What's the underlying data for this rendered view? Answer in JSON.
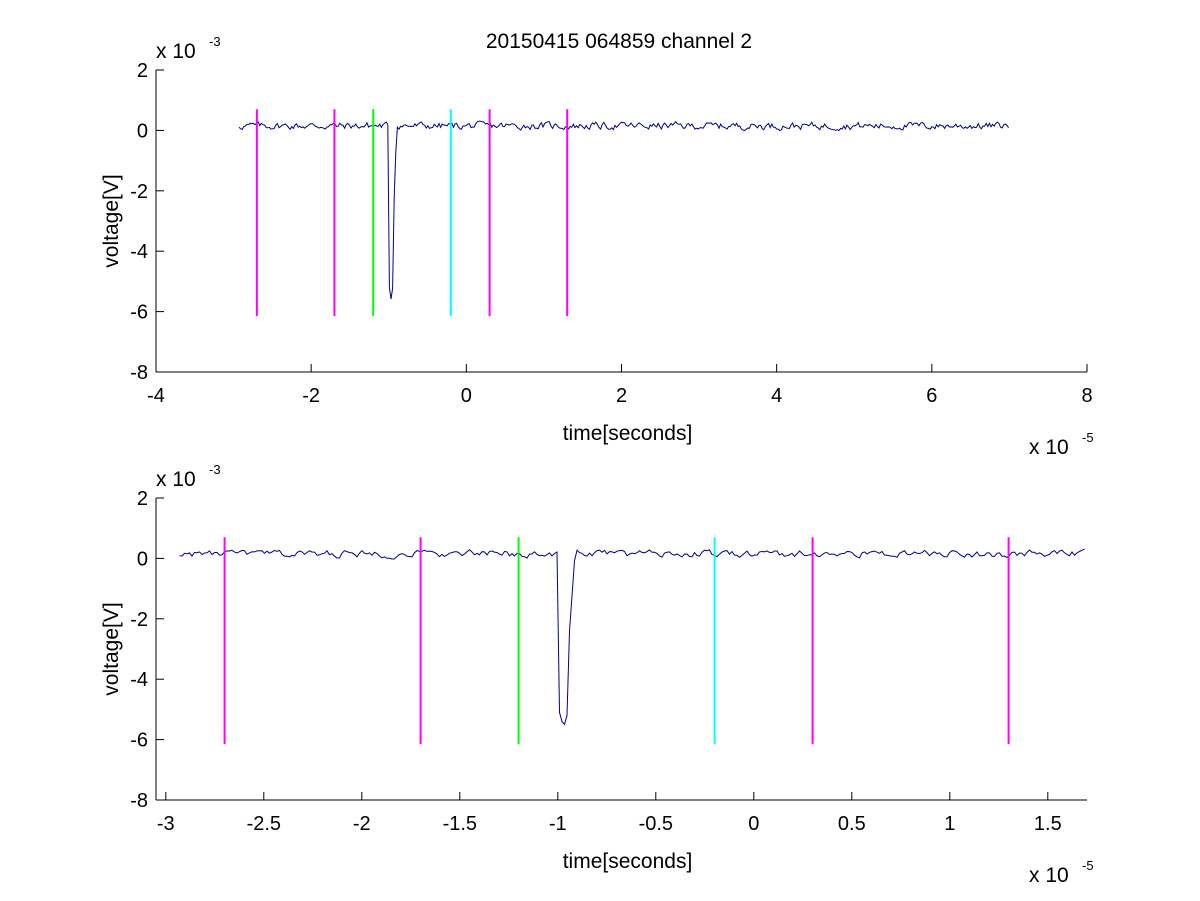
{
  "title": "20150415 064859 channel 2",
  "colors": {
    "signal": "#00008b",
    "magenta": "#ff00ff",
    "green": "#00ff00",
    "cyan": "#00ffff",
    "axis": "#000000"
  },
  "chart_data": [
    {
      "type": "line",
      "xlabel": "time[seconds]",
      "ylabel": "voltage[V]",
      "x_exponent_label": "x 10",
      "x_exponent_power": "-5",
      "y_exponent_label": "x 10",
      "y_exponent_power": "-3",
      "xlim": [
        -4,
        8
      ],
      "ylim": [
        -8,
        2
      ],
      "xticks": [
        -4,
        -2,
        0,
        2,
        4,
        6,
        8
      ],
      "xtick_labels": [
        "-4",
        "-2",
        "0",
        "2",
        "4",
        "6",
        "8"
      ],
      "yticks": [
        -8,
        -6,
        -4,
        -2,
        0,
        2
      ],
      "ytick_labels": [
        "-8",
        "-6",
        "-4",
        "-2",
        "0",
        "2"
      ],
      "grid": false,
      "signal": {
        "x_range": [
          -2.93,
          7.0
        ],
        "baseline": 0.15,
        "noise_amplitude": 0.2,
        "pulse": {
          "x": -0.97,
          "min": -5.6
        }
      },
      "markers": [
        {
          "x": -2.7,
          "y_bottom": -6.15,
          "y_top": 0.7,
          "color": "magenta"
        },
        {
          "x": -1.7,
          "y_bottom": -6.15,
          "y_top": 0.7,
          "color": "magenta"
        },
        {
          "x": -1.2,
          "y_bottom": -6.15,
          "y_top": 0.7,
          "color": "green"
        },
        {
          "x": -0.2,
          "y_bottom": -6.15,
          "y_top": 0.7,
          "color": "cyan"
        },
        {
          "x": 0.3,
          "y_bottom": -6.15,
          "y_top": 0.7,
          "color": "magenta"
        },
        {
          "x": 1.3,
          "y_bottom": -6.15,
          "y_top": 0.7,
          "color": "magenta"
        }
      ]
    },
    {
      "type": "line",
      "xlabel": "time[seconds]",
      "ylabel": "voltage[V]",
      "x_exponent_label": "x 10",
      "x_exponent_power": "-5",
      "y_exponent_label": "x 10",
      "y_exponent_power": "-3",
      "xlim": [
        -3.05,
        1.7
      ],
      "ylim": [
        -8,
        2
      ],
      "xticks": [
        -3,
        -2.5,
        -2,
        -1.5,
        -1,
        -0.5,
        0,
        0.5,
        1,
        1.5
      ],
      "xtick_labels": [
        "-3",
        "-2.5",
        "-2",
        "-1.5",
        "-1",
        "-0.5",
        "0",
        "0.5",
        "1",
        "1.5"
      ],
      "yticks": [
        -8,
        -6,
        -4,
        -2,
        0,
        2
      ],
      "ytick_labels": [
        "-8",
        "-6",
        "-4",
        "-2",
        "0",
        "2"
      ],
      "grid": false,
      "signal": {
        "x_range": [
          -2.93,
          1.7
        ],
        "baseline": 0.15,
        "noise_amplitude": 0.2,
        "pulse": {
          "x": -0.97,
          "min": -5.6
        }
      },
      "markers": [
        {
          "x": -2.7,
          "y_bottom": -6.15,
          "y_top": 0.7,
          "color": "magenta"
        },
        {
          "x": -1.7,
          "y_bottom": -6.15,
          "y_top": 0.7,
          "color": "magenta"
        },
        {
          "x": -1.2,
          "y_bottom": -6.15,
          "y_top": 0.7,
          "color": "green"
        },
        {
          "x": -0.2,
          "y_bottom": -6.15,
          "y_top": 0.7,
          "color": "cyan"
        },
        {
          "x": 0.3,
          "y_bottom": -6.15,
          "y_top": 0.7,
          "color": "magenta"
        },
        {
          "x": 1.3,
          "y_bottom": -6.15,
          "y_top": 0.7,
          "color": "magenta"
        }
      ]
    }
  ]
}
